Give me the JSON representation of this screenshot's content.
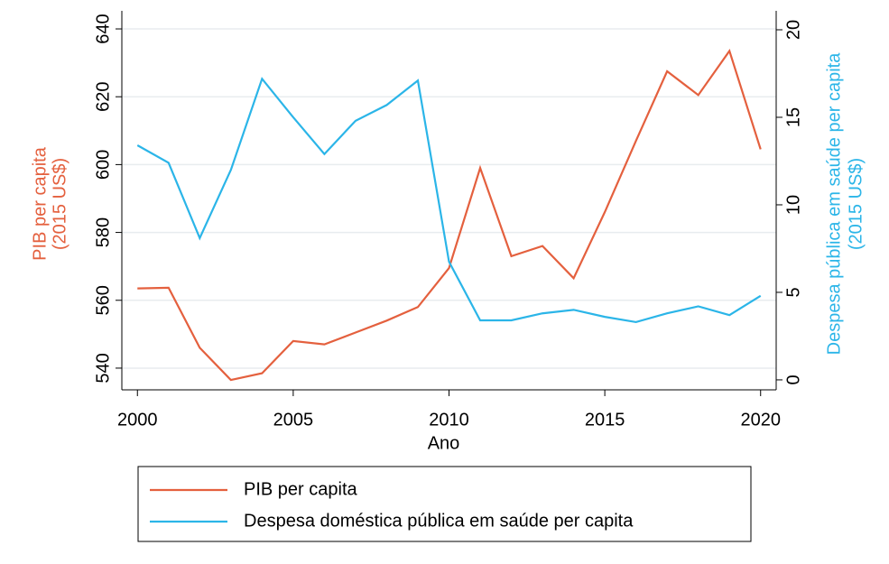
{
  "chart_data": {
    "type": "line",
    "xlabel": "Ano",
    "ylabel": [
      "PIB per capita",
      "(2015 US$)"
    ],
    "y2label": [
      "Despesa pública em saúde per capita",
      "(2015 US$)"
    ],
    "x": [
      2000,
      2001,
      2002,
      2003,
      2004,
      2005,
      2006,
      2007,
      2008,
      2009,
      2010,
      2011,
      2012,
      2013,
      2014,
      2015,
      2016,
      2017,
      2018,
      2019,
      2020
    ],
    "series": [
      {
        "name": "PIB per capita",
        "color": "#e4603e",
        "axis": "y",
        "values": [
          563.5,
          563.7,
          546,
          536.5,
          538.5,
          548,
          547,
          550.5,
          554,
          558,
          569.5,
          599,
          573,
          576,
          566.5,
          586,
          607,
          627.5,
          620.5,
          633.5,
          604.5
        ]
      },
      {
        "name": "Despesa doméstica pública em saúde per capita",
        "color": "#2bb5e8",
        "axis": "y2",
        "values": [
          13.4,
          12.4,
          8.1,
          12.0,
          17.2,
          15.0,
          12.9,
          14.8,
          15.7,
          17.1,
          6.75,
          3.4,
          3.4,
          3.8,
          4.0,
          3.6,
          3.3,
          3.8,
          4.2,
          3.7,
          4.8
        ]
      }
    ],
    "xlim": [
      1999.5,
      2020.5
    ],
    "xticks": [
      2000,
      2005,
      2010,
      2015,
      2020
    ],
    "ylim": [
      533.6,
      643.2
    ],
    "yticks": [
      540,
      560,
      580,
      600,
      620,
      640
    ],
    "y2lim": [
      -0.57,
      20.67
    ],
    "y2ticks": [
      0,
      5,
      10,
      15,
      20
    ],
    "grid": true,
    "legend": "bottom"
  }
}
